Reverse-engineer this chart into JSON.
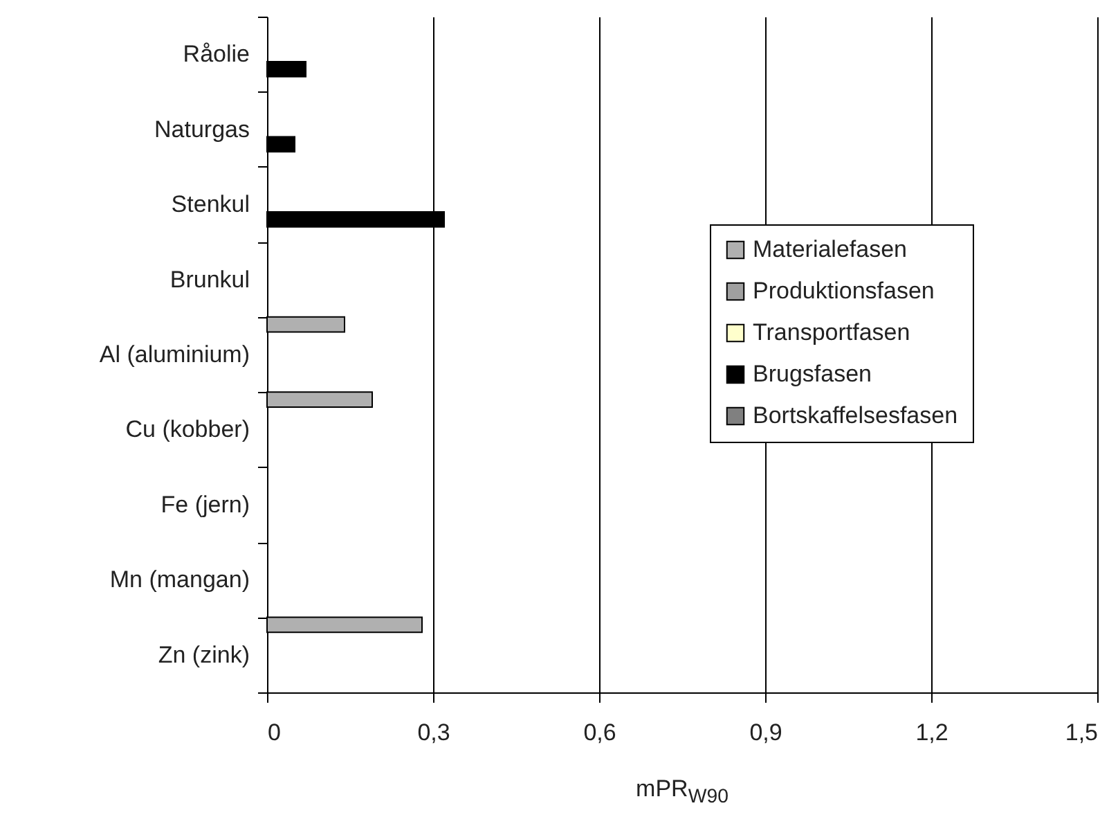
{
  "chart_data": {
    "type": "bar",
    "orientation": "horizontal",
    "xlabel": "mPR$_{W90}$",
    "categories": [
      "Råolie",
      "Naturgas",
      "Stenkul",
      "Brunkul",
      "Al (aluminium)",
      "Cu (kobber)",
      "Fe (jern)",
      "Mn (mangan)",
      "Zn (zink)"
    ],
    "series": [
      {
        "name": "Materialefasen",
        "color": "#b0b0b0",
        "values": [
          null,
          null,
          null,
          null,
          0.14,
          0.19,
          null,
          null,
          0.28
        ]
      },
      {
        "name": "Produktionsfasen",
        "color": "#a0a0a0",
        "values": [
          null,
          null,
          null,
          null,
          null,
          null,
          null,
          null,
          null
        ]
      },
      {
        "name": "Transportfasen",
        "color": "#ffffcc",
        "values": [
          null,
          null,
          null,
          null,
          null,
          null,
          null,
          null,
          null
        ]
      },
      {
        "name": "Brugsfasen",
        "color": "#000000",
        "values": [
          0.07,
          0.05,
          0.32,
          null,
          null,
          null,
          null,
          null,
          null
        ]
      },
      {
        "name": "Bortskaffelsesfasen",
        "color": "#808080",
        "values": [
          null,
          null,
          null,
          null,
          null,
          null,
          null,
          null,
          null
        ]
      }
    ],
    "xlim": [
      0,
      1.5
    ],
    "xticks": [
      {
        "value": 0,
        "label": "0"
      },
      {
        "value": 0.3,
        "label": "0,3"
      },
      {
        "value": 0.6,
        "label": "0,6"
      },
      {
        "value": 0.9,
        "label": "0,9"
      },
      {
        "value": 1.2,
        "label": "1,2"
      },
      {
        "value": 1.5,
        "label": "1,5"
      }
    ],
    "grid": "x",
    "legend": "right"
  }
}
